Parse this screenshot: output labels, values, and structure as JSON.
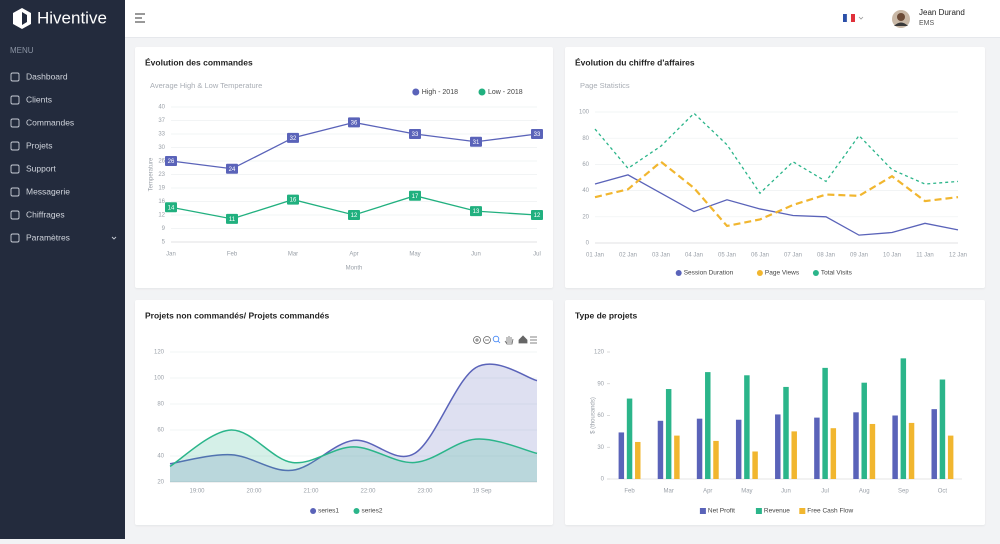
{
  "sidebar": {
    "brand": "Hiventive",
    "menu_label": "MENU",
    "items": [
      "Dashboard",
      "Clients",
      "Commandes",
      "Projets",
      "Support",
      "Messagerie",
      "Chiffrages",
      "Paramètres"
    ]
  },
  "header": {
    "user_name": "Jean Durand",
    "user_org": "EMS"
  },
  "chart_data": [
    {
      "type": "line",
      "title": "Évolution des commandes",
      "subtitle": "Average High & Low Temperature",
      "xlabel": "Month",
      "ylabel": "Temperature",
      "legend": "top-right",
      "grid": true,
      "data_labels": true,
      "categories": [
        "Jan",
        "Feb",
        "Mar",
        "Apr",
        "May",
        "Jun",
        "Jul"
      ],
      "series": [
        {
          "name": "High - 2018",
          "color": "#5a63b9",
          "line_style": "solid",
          "values": [
            26,
            24,
            32,
            36,
            33,
            31,
            33
          ]
        },
        {
          "name": "Low - 2018",
          "color": "#21b07f",
          "line_style": "solid",
          "values": [
            14,
            11,
            16,
            12,
            17,
            13,
            12
          ]
        }
      ],
      "ylim": [
        5,
        40
      ],
      "yticks": [
        5,
        {
          "value": 8.5,
          "label": "9"
        },
        12,
        {
          "value": 15.5,
          "label": "16"
        },
        19,
        {
          "value": 22.5,
          "label": "23"
        },
        26,
        {
          "value": 29.5,
          "label": "30"
        },
        33,
        {
          "value": 36.5,
          "label": "37"
        },
        40
      ]
    },
    {
      "type": "line",
      "title": "Évolution du chiffre d'affaires",
      "subtitle": "Page Statistics",
      "legend": "bottom",
      "grid": true,
      "data_labels": false,
      "categories": [
        "01 Jan",
        "02 Jan",
        "03 Jan",
        "04 Jan",
        "05 Jan",
        "06 Jan",
        "07 Jan",
        "08 Jan",
        "09 Jan",
        "10 Jan",
        "11 Jan",
        "12 Jan"
      ],
      "series": [
        {
          "name": "Session Duration",
          "color": "#5a63b9",
          "line_style": "solid",
          "values": [
            45,
            52,
            38,
            24,
            33,
            26,
            21,
            20,
            6,
            8,
            15,
            10
          ]
        },
        {
          "name": "Page Views",
          "color": "#f1b62f",
          "line_style": "dashed",
          "values": [
            35,
            41,
            62,
            42,
            13,
            18,
            29,
            37,
            36,
            51,
            32,
            35
          ]
        },
        {
          "name": "Total Visits",
          "color": "#2bb58a",
          "line_style": "dotted",
          "values": [
            87,
            57,
            74,
            99,
            75,
            38,
            62,
            47,
            82,
            56,
            45,
            47
          ]
        }
      ],
      "ylim": [
        0,
        100
      ],
      "yticks": [
        0,
        20,
        40,
        60,
        80,
        100
      ]
    },
    {
      "type": "area",
      "title": "Projets non commandés/ Projets commandés",
      "legend": "bottom",
      "grid": true,
      "smooth": true,
      "xticks": [
        "19:00",
        "20:00",
        "21:00",
        "22:00",
        "23:00",
        "19 Sep"
      ],
      "series": [
        {
          "name": "series1",
          "color": "#5a63b9",
          "values": [
            34,
            41,
            29,
            52,
            42,
            108,
            98
          ]
        },
        {
          "name": "series2",
          "color": "#2bb58a",
          "values": [
            32,
            60,
            35,
            47,
            35,
            53,
            42
          ]
        }
      ],
      "ylim": [
        20,
        120
      ],
      "yticks": [
        20,
        40,
        60,
        80,
        100,
        120
      ]
    },
    {
      "type": "bar",
      "title": "Type de projets",
      "ylabel": "$ (thousands)",
      "legend": "bottom",
      "grid": false,
      "categories": [
        "Feb",
        "Mar",
        "Apr",
        "May",
        "Jun",
        "Jul",
        "Aug",
        "Sep",
        "Oct"
      ],
      "series": [
        {
          "name": "Net Profit",
          "color": "#5a63b9",
          "values": [
            44,
            55,
            57,
            56,
            61,
            58,
            63,
            60,
            66
          ]
        },
        {
          "name": "Revenue",
          "color": "#2bb58a",
          "values": [
            76,
            85,
            101,
            98,
            87,
            105,
            91,
            114,
            94
          ]
        },
        {
          "name": "Free Cash Flow",
          "color": "#f1b62f",
          "values": [
            35,
            41,
            36,
            26,
            45,
            48,
            52,
            53,
            41
          ]
        }
      ],
      "ylim": [
        0,
        120
      ],
      "yticks": [
        0,
        30,
        60,
        90,
        120
      ]
    }
  ]
}
